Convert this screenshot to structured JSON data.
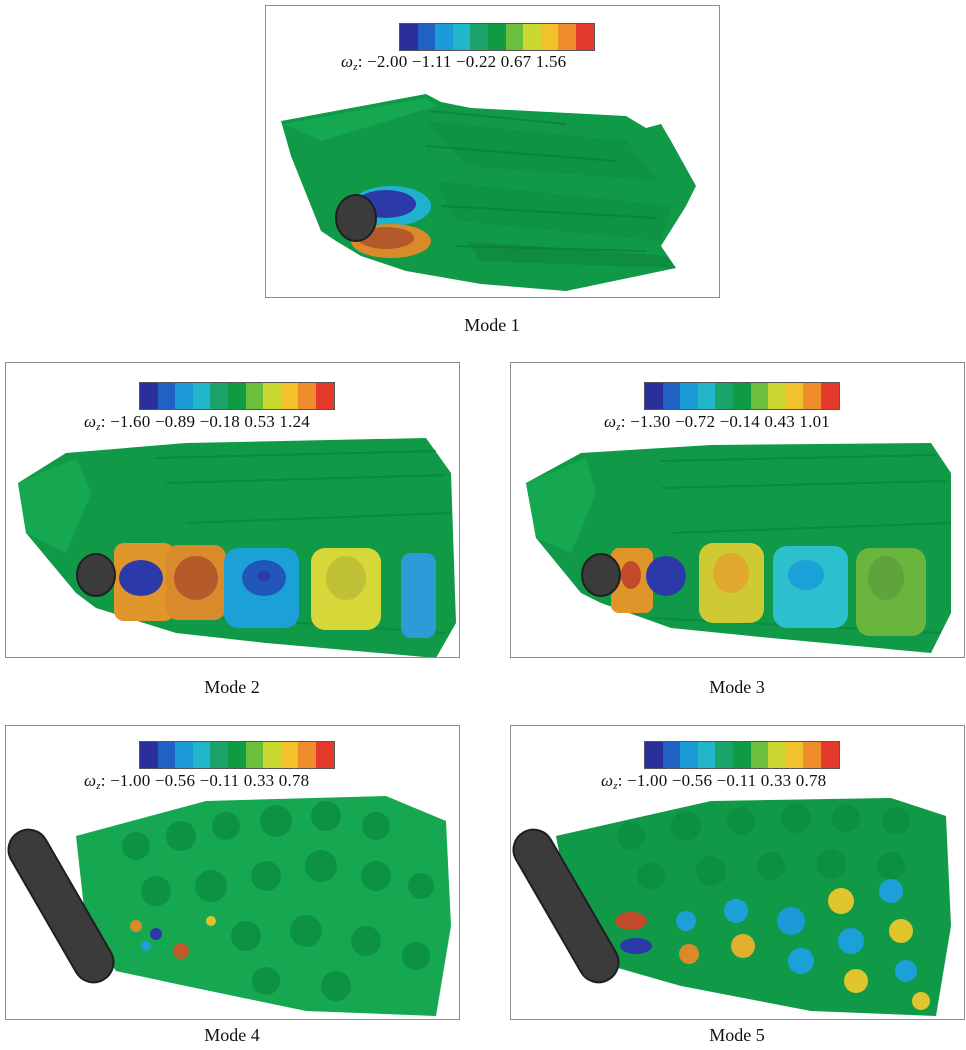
{
  "colormap": [
    "#2b2f9c",
    "#1f62c4",
    "#1c9ad8",
    "#21b6c9",
    "#1aa36a",
    "#0f9a44",
    "#6cbf3c",
    "#cbd832",
    "#f1c22a",
    "#ef8c2c",
    "#e33a2c"
  ],
  "symbol": "ω",
  "subscript": "z",
  "panels": [
    {
      "id": "mode1",
      "caption": "Mode 1",
      "ticks": "−2.00 −1.11 −0.22 0.67 1.56"
    },
    {
      "id": "mode2",
      "caption": "Mode 2",
      "ticks": "−1.60 −0.89 −0.18 0.53 1.24"
    },
    {
      "id": "mode3",
      "caption": "Mode 3",
      "ticks": "−1.30 −0.72 −0.14 0.43 1.01"
    },
    {
      "id": "mode4",
      "caption": "Mode 4",
      "ticks": "−1.00 −0.56 −0.11 0.33 0.78"
    },
    {
      "id": "mode5",
      "caption": "Mode 5",
      "ticks": "−1.00 −0.56 −0.11 0.33 0.78"
    }
  ]
}
